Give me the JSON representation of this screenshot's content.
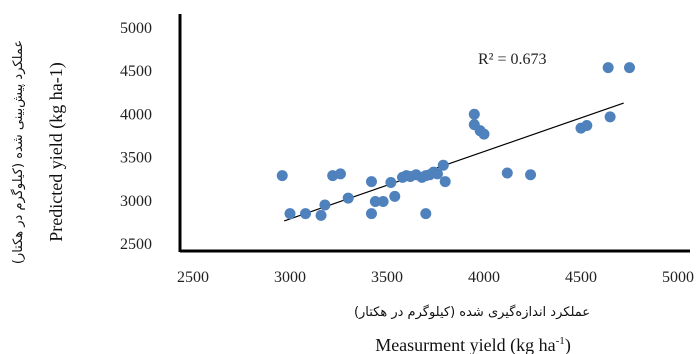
{
  "chart_data": {
    "type": "scatter",
    "title": "",
    "xlabel": "Measurment yield (kg ha",
    "xlabel_sup": "-1",
    "xlabel_close": ")",
    "xlabel_fa": "عملکرد اندازه‌گیری شده (کیلوگرم در هکتار)",
    "ylabel": "Predicted yield (kg ha-1)",
    "ylabel_fa": "عملکرد پیش‌بینی شده (کیلوگرم در هکتار)",
    "xlim": [
      2500,
      5000
    ],
    "ylim": [
      2500,
      5000
    ],
    "xticks": [
      "2500",
      "3000",
      "3500",
      "4000",
      "4500",
      "5000"
    ],
    "yticks": [
      "2500",
      "3000",
      "3500",
      "4000",
      "4500",
      "5000"
    ],
    "grid": false,
    "marker_color": "#4f81bd",
    "trendline_color": "#000000",
    "r_squared_label": "R² = 0.673",
    "trendline": {
      "x": [
        2970,
        4720
      ],
      "y": [
        2755,
        4120
      ]
    },
    "points": [
      {
        "x": 2960,
        "y": 3280
      },
      {
        "x": 3000,
        "y": 2840
      },
      {
        "x": 3080,
        "y": 2840
      },
      {
        "x": 3160,
        "y": 2820
      },
      {
        "x": 3180,
        "y": 2940
      },
      {
        "x": 3220,
        "y": 3280
      },
      {
        "x": 3260,
        "y": 3300
      },
      {
        "x": 3300,
        "y": 3020
      },
      {
        "x": 3420,
        "y": 3210
      },
      {
        "x": 3420,
        "y": 2840
      },
      {
        "x": 3440,
        "y": 2980
      },
      {
        "x": 3480,
        "y": 2980
      },
      {
        "x": 3520,
        "y": 3200
      },
      {
        "x": 3540,
        "y": 3040
      },
      {
        "x": 3580,
        "y": 3260
      },
      {
        "x": 3600,
        "y": 3280
      },
      {
        "x": 3620,
        "y": 3270
      },
      {
        "x": 3650,
        "y": 3290
      },
      {
        "x": 3680,
        "y": 3260
      },
      {
        "x": 3700,
        "y": 3280
      },
      {
        "x": 3700,
        "y": 2840
      },
      {
        "x": 3720,
        "y": 3290
      },
      {
        "x": 3740,
        "y": 3320
      },
      {
        "x": 3760,
        "y": 3300
      },
      {
        "x": 3790,
        "y": 3400
      },
      {
        "x": 3800,
        "y": 3210
      },
      {
        "x": 3950,
        "y": 3990
      },
      {
        "x": 3950,
        "y": 3870
      },
      {
        "x": 3980,
        "y": 3800
      },
      {
        "x": 4000,
        "y": 3760
      },
      {
        "x": 4120,
        "y": 3310
      },
      {
        "x": 4240,
        "y": 3290
      },
      {
        "x": 4500,
        "y": 3830
      },
      {
        "x": 4530,
        "y": 3860
      },
      {
        "x": 4640,
        "y": 4530
      },
      {
        "x": 4650,
        "y": 3960
      },
      {
        "x": 4750,
        "y": 4530
      }
    ]
  }
}
